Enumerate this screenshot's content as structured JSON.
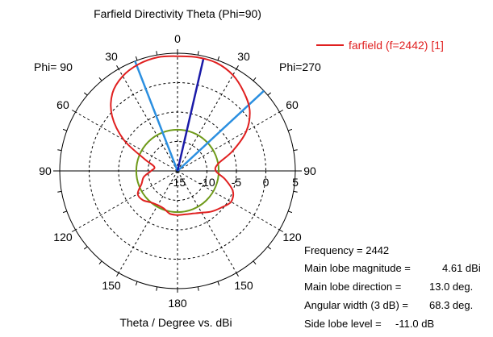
{
  "chart_data": {
    "type": "polar",
    "title": "Farfield Directivity Theta (Phi=90)",
    "xlabel": "Theta / Degree vs. dBi",
    "left_plane_label": "Phi= 90",
    "right_plane_label": "Phi=270",
    "theta_tick_labels": [
      "0",
      "30",
      "60",
      "90",
      "120",
      "150",
      "180",
      "150",
      "120",
      "90",
      "60",
      "30"
    ],
    "radial_tick_labels": [
      "-15",
      "-10",
      "-5",
      "0",
      "5"
    ],
    "radial_range_dbi": [
      -15,
      5
    ],
    "grid": true,
    "legend_position": "top-right",
    "series": [
      {
        "name": "farfield (f=2442) [1]",
        "color": "#e02020",
        "theta_deg": [
          -180,
          -170,
          -160,
          -150,
          -140,
          -130,
          -120,
          -110,
          -100,
          -90,
          -80,
          -70,
          -60,
          -50,
          -40,
          -30,
          -20,
          -10,
          0,
          10,
          20,
          30,
          40,
          50,
          60,
          70,
          80,
          90,
          100,
          110,
          120,
          130,
          140,
          150,
          160,
          170,
          180
        ],
        "directivity_dbi": [
          -7.5,
          -7.6,
          -8.2,
          -8.3,
          -8.0,
          -7.3,
          -7.2,
          -8.5,
          -9.2,
          -10.5,
          -11.0,
          -9.0,
          -4.5,
          -0.5,
          2.2,
          3.6,
          4.3,
          4.6,
          4.5,
          4.6,
          4.5,
          3.8,
          2.5,
          1.0,
          -1.5,
          -5.0,
          -8.0,
          -8.5,
          -6.8,
          -5.0,
          -4.5,
          -5.3,
          -6.0,
          -6.8,
          -7.3,
          -7.5,
          -7.5
        ]
      }
    ],
    "reference_circle_dbi": -8.0,
    "reference_circle_color": "#6f9a1a",
    "main_lobe_direction_deg": 13.0,
    "beamwidth_edges_deg": [
      -21.15,
      47.15
    ],
    "main_lobe_line_color": "#1a1aa8",
    "beamwidth_line_color": "#2b8fe0"
  },
  "info": {
    "frequency": "Frequency = 2442",
    "main_lobe_magnitude_label": "Main lobe magnitude =",
    "main_lobe_magnitude_value": "4.61 dBi",
    "main_lobe_direction_label": "Main lobe direction =",
    "main_lobe_direction_value": "13.0 deg.",
    "angular_width_label": "Angular width (3 dB) =",
    "angular_width_value": "68.3 deg.",
    "side_lobe_label": "Side lobe level =",
    "side_lobe_value": "-11.0 dB"
  }
}
